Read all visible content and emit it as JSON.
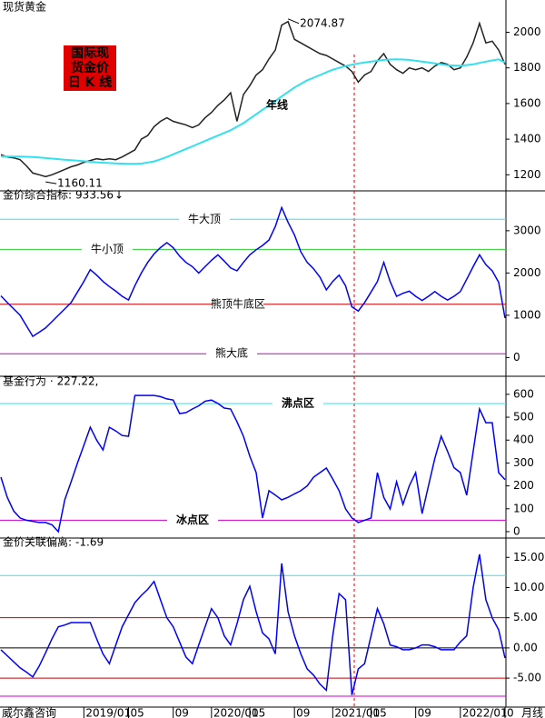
{
  "chart_data": [
    {
      "type": "line",
      "title": "现货黄金",
      "ylim": [
        1120,
        2130
      ],
      "yticks": [
        1200,
        1400,
        1600,
        1800,
        2000
      ],
      "badge": [
        "国际现",
        "货金价",
        "日 K 线"
      ],
      "annotations": [
        {
          "value": 2074.87,
          "label": "2074.87"
        },
        {
          "value": 1160.11,
          "label": "1160.11"
        }
      ],
      "series": [
        {
          "color": "#222222",
          "values": [
            1313,
            1300,
            1295,
            1285,
            1250,
            1210,
            1200,
            1190,
            1200,
            1215,
            1230,
            1245,
            1255,
            1270,
            1280,
            1290,
            1285,
            1290,
            1285,
            1300,
            1320,
            1340,
            1400,
            1420,
            1470,
            1500,
            1520,
            1500,
            1490,
            1480,
            1465,
            1480,
            1520,
            1550,
            1590,
            1620,
            1660,
            1500,
            1650,
            1700,
            1760,
            1790,
            1850,
            1900,
            2040,
            2060,
            1960,
            1940,
            1920,
            1900,
            1880,
            1870,
            1850,
            1830,
            1810,
            1780,
            1720,
            1760,
            1780,
            1840,
            1880,
            1820,
            1790,
            1770,
            1800,
            1790,
            1800,
            1780,
            1810,
            1830,
            1820,
            1790,
            1800,
            1860,
            1940,
            2050,
            1940,
            1950,
            1900,
            1820
          ]
        },
        {
          "name": "年线",
          "color": "#33e0f0",
          "values": [
            1303,
            1303,
            1302,
            1302,
            1301,
            1300,
            1297,
            1294,
            1291,
            1288,
            1285,
            1282,
            1279,
            1276,
            1273,
            1270,
            1268,
            1266,
            1264,
            1263,
            1262,
            1262,
            1263,
            1269,
            1275,
            1287,
            1300,
            1315,
            1330,
            1345,
            1360,
            1375,
            1390,
            1405,
            1420,
            1435,
            1450,
            1470,
            1490,
            1515,
            1540,
            1565,
            1590,
            1615,
            1640,
            1665,
            1690,
            1710,
            1730,
            1745,
            1760,
            1775,
            1790,
            1800,
            1810,
            1818,
            1825,
            1830,
            1835,
            1840,
            1845,
            1847,
            1848,
            1847,
            1845,
            1840,
            1835,
            1830,
            1825,
            1820,
            1815,
            1813,
            1812,
            1816,
            1820,
            1828,
            1835,
            1842,
            1848,
            1830
          ]
        }
      ]
    },
    {
      "type": "line",
      "title": "金价综合指标:",
      "readout": {
        "value": 933.56,
        "label": "933.56"
      },
      "arrow": "↓",
      "ylim": [
        -400,
        3900
      ],
      "yticks": [
        0,
        1000,
        2000,
        3000
      ],
      "hlines": [
        {
          "value": 3270,
          "label": "牛大顶",
          "color": "#33e0f0"
        },
        {
          "value": 2560,
          "label": "牛小顶",
          "color": "#33cc33"
        },
        {
          "value": 1260,
          "label": "熊顶牛底区",
          "color": "#cc0000"
        },
        {
          "value": 90,
          "label": "熊大底",
          "color": "#cc00cc"
        }
      ],
      "series": [
        {
          "color": "#0000ff",
          "values": [
            1460,
            1300,
            1150,
            1000,
            750,
            500,
            600,
            700,
            850,
            1000,
            1150,
            1300,
            1550,
            1800,
            2080,
            1950,
            1800,
            1680,
            1570,
            1450,
            1360,
            1700,
            2000,
            2250,
            2450,
            2600,
            2720,
            2600,
            2400,
            2250,
            2150,
            2000,
            2150,
            2300,
            2430,
            2280,
            2120,
            2050,
            2250,
            2430,
            2550,
            2650,
            2780,
            3100,
            3550,
            3200,
            2900,
            2500,
            2250,
            2100,
            1900,
            1600,
            1800,
            1950,
            1700,
            1200,
            1100,
            1300,
            1550,
            1800,
            2250,
            1800,
            1450,
            1520,
            1570,
            1450,
            1350,
            1450,
            1560,
            1450,
            1360,
            1450,
            1560,
            1850,
            2150,
            2430,
            2200,
            2050,
            1780,
            933.56
          ]
        }
      ]
    },
    {
      "type": "line",
      "title": "基金行为 ·",
      "readout": {
        "value": 227.22,
        "label": "227.22,"
      },
      "ylim": [
        -20,
        667
      ],
      "yticks": [
        0,
        100,
        200,
        300,
        400,
        500,
        600
      ],
      "hlines": [
        {
          "value": 560,
          "label": "沸点区",
          "color": "#33e0f0"
        },
        {
          "value": 50,
          "label": "冰点区",
          "color": "#cc00cc"
        }
      ],
      "series": [
        {
          "color": "#0000ff",
          "values": [
            238,
            150,
            90,
            60,
            50,
            45,
            40,
            40,
            30,
            0,
            139,
            218,
            300,
            377,
            456,
            400,
            357,
            456,
            440,
            420,
            417,
            595,
            595,
            595,
            595,
            590,
            580,
            575,
            516,
            520,
            536,
            550,
            570,
            575,
            560,
            540,
            536,
            480,
            417,
            330,
            258,
            60,
            179,
            160,
            139,
            150,
            165,
            179,
            200,
            238,
            258,
            278,
            230,
            179,
            100,
            60,
            40,
            50,
            60,
            258,
            150,
            99,
            218,
            119,
            200,
            258,
            79,
            200,
            320,
            417,
            350,
            280,
            258,
            159,
            350,
            536,
            476,
            476,
            258,
            227.22
          ]
        }
      ]
    },
    {
      "type": "line",
      "title": "金价关联偏离:",
      "readout": {
        "value": -1.69,
        "label": "-1.69"
      },
      "ylim": [
        -9.5,
        17.9
      ],
      "yticks": [
        {
          "value": -5,
          "label": "-5.00"
        },
        {
          "value": 0,
          "label": "0.00"
        },
        {
          "value": 5,
          "label": "5.00"
        },
        {
          "value": 10,
          "label": "10.00"
        },
        {
          "value": 15,
          "label": "15.00"
        }
      ],
      "hlines": [
        {
          "value": 12,
          "color": "#33e0f0"
        },
        {
          "value": 5,
          "color": "#cc0000"
        },
        {
          "value": 0,
          "color": "#000000"
        },
        {
          "value": -5,
          "color": "#cc0000"
        },
        {
          "value": -8,
          "color": "#cc00cc"
        }
      ],
      "categories": [
        null,
        null,
        null,
        null,
        null,
        null,
        null,
        null,
        null,
        null,
        null,
        null,
        null,
        "2019/01",
        null,
        null,
        null,
        null,
        null,
        null,
        "05",
        null,
        null,
        null,
        null,
        null,
        null,
        "09",
        null,
        null,
        null,
        null,
        null,
        "2020/01",
        null,
        null,
        null,
        null,
        null,
        "05",
        null,
        null,
        null,
        null,
        null,
        null,
        "09",
        null,
        null,
        null,
        null,
        null,
        "2021/01",
        null,
        null,
        null,
        null,
        null,
        "05",
        null,
        null,
        null,
        null,
        null,
        null,
        "09",
        null,
        null,
        null,
        null,
        null,
        null,
        "2022/01",
        null,
        null,
        null,
        null,
        null,
        null,
        "0"
      ],
      "footer_left": "威尔鑫咨询",
      "footer_right": "月线",
      "series": [
        {
          "color": "#0000ff",
          "values": [
            -0.3,
            -1.3,
            -2.3,
            -3.3,
            -4.0,
            -4.8,
            -3.0,
            -0.8,
            1.5,
            3.5,
            3.8,
            4.2,
            4.2,
            4.2,
            4.2,
            1.5,
            -1.0,
            -2.6,
            0.5,
            3.5,
            5.5,
            7.5,
            8.7,
            9.7,
            11,
            8,
            5,
            3.5,
            1,
            -1.5,
            -2.6,
            0.5,
            3.5,
            6.5,
            5,
            2,
            0.5,
            4,
            8,
            10.2,
            6,
            2.5,
            1.5,
            -1,
            14,
            6,
            2,
            -1,
            -3.5,
            -4.5,
            -6,
            -7,
            2,
            9,
            8,
            -7.8,
            -3.5,
            -2.6,
            2,
            6.5,
            4,
            0.5,
            0.2,
            -0.3,
            -0.3,
            0,
            0.5,
            0.5,
            0.2,
            -0.3,
            -0.3,
            -0.3,
            1,
            2,
            10,
            15.5,
            8,
            5,
            3,
            -1.69
          ]
        }
      ]
    }
  ]
}
